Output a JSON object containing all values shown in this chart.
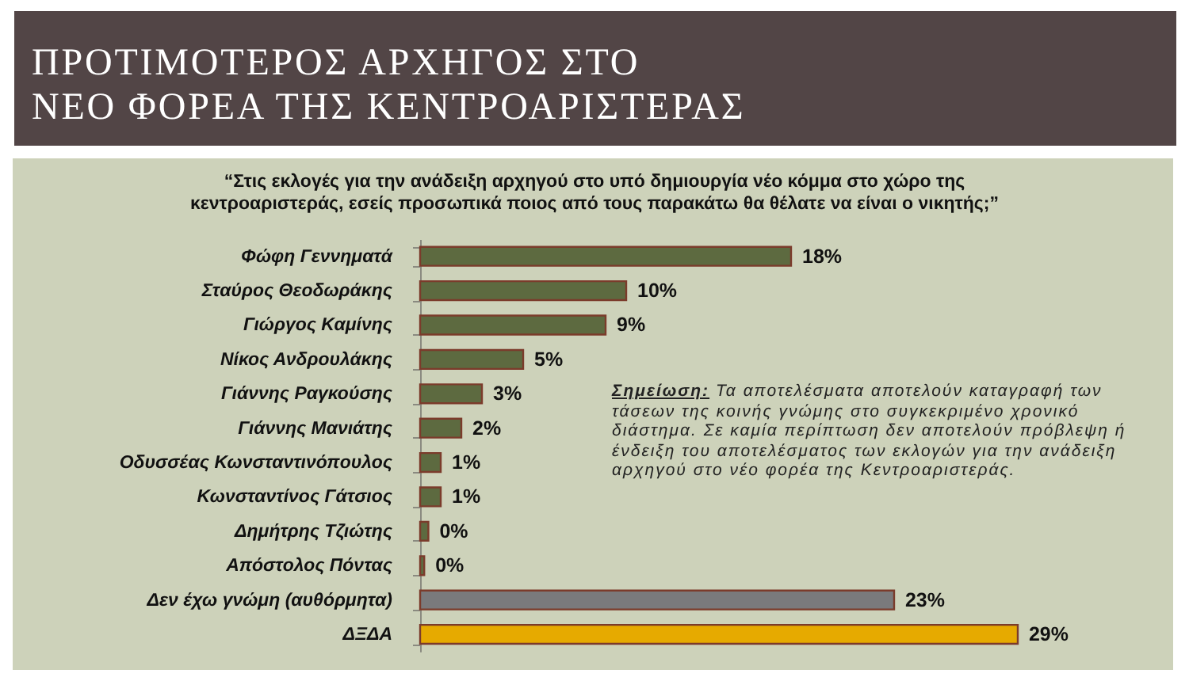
{
  "chart_data": {
    "type": "bar",
    "orientation": "horizontal",
    "title": "ΠΡΟΤΙΜΟΤΕΡΟΣ ΑΡΧΗΓΟΣ ΣΤΟ\nΝΕΟ ΦΟΡΕΑ ΤΗΣ ΚΕΝΤΡΟΑΡΙΣΤΕΡΑΣ",
    "subtitle": "“Στις εκλογές για την ανάδειξη αρχηγού στο υπό δημιουργία νέο κόμμα στο χώρο της κεντροαριστεράς, εσείς προσωπικά ποιος από τους παρακάτω θα θέλατε να είναι ο νικητής;”",
    "annotations": [
      "Σημείωση: Τα αποτελέσματα αποτελούν καταγραφή των τάσεων της κοινής γνώμης στο συγκεκριμένο χρονικό διάστημα. Σε καμία περίπτωση δεν αποτελούν πρόβλεψη ή ένδειξη του αποτελέσματος των εκλογών για την ανάδειξη αρχηγού στο νέο φορέα της Κεντροαριστεράς."
    ],
    "categories": [
      "Φώφη Γεννηματά",
      "Σταύρος Θεοδωράκης",
      "Γιώργος Καμίνης",
      "Νίκος Ανδρουλάκης",
      "Γιάννης Ραγκούσης",
      "Γιάννης Μανιάτης",
      "Οδυσσέας Κωνσταντινόπουλος",
      "Κωνσταντίνος Γάτσιος",
      "Δημήτρης Τζιώτης",
      "Απόστολος Πόντας",
      "Δεν έχω γνώμη (αυθόρμητα)",
      "ΔΞΔΑ"
    ],
    "values": [
      18,
      10,
      9,
      5,
      3,
      2,
      1,
      1,
      0.4,
      0.2,
      23,
      29
    ],
    "value_labels": [
      "18%",
      "10%",
      "9%",
      "5%",
      "3%",
      "2%",
      "1%",
      "1%",
      "0%",
      "0%",
      "23%",
      "29%"
    ],
    "colors": [
      "#5d6a40",
      "#5d6a40",
      "#5d6a40",
      "#5d6a40",
      "#5d6a40",
      "#5d6a40",
      "#5d6a40",
      "#5d6a40",
      "#5d6a40",
      "#5d6a40",
      "#7a7a7c",
      "#e6aa00"
    ]
  }
}
